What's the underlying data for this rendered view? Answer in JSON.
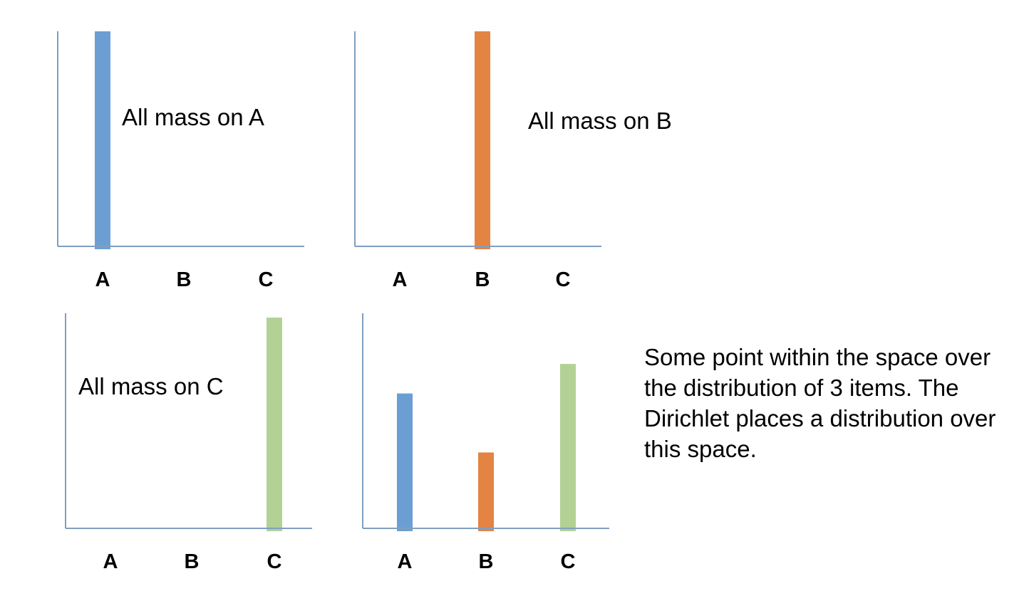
{
  "chart_data": [
    {
      "type": "bar",
      "categories": [
        "A",
        "B",
        "C"
      ],
      "values": [
        1,
        0,
        0
      ],
      "colors": [
        "#6b9fd4",
        "#e38443",
        "#b2d295"
      ],
      "ylim": [
        0,
        1
      ],
      "annotation": "All mass on A"
    },
    {
      "type": "bar",
      "categories": [
        "A",
        "B",
        "C"
      ],
      "values": [
        0,
        1,
        0
      ],
      "colors": [
        "#6b9fd4",
        "#e38443",
        "#b2d295"
      ],
      "ylim": [
        0,
        1
      ],
      "annotation": "All mass on B"
    },
    {
      "type": "bar",
      "categories": [
        "A",
        "B",
        "C"
      ],
      "values": [
        0,
        0,
        1
      ],
      "colors": [
        "#6b9fd4",
        "#e38443",
        "#b2d295"
      ],
      "ylim": [
        0,
        1
      ],
      "annotation": "All mass on C"
    },
    {
      "type": "bar",
      "categories": [
        "A",
        "B",
        "C"
      ],
      "values": [
        0.64,
        0.36,
        0.78
      ],
      "colors": [
        "#6b9fd4",
        "#e38443",
        "#b2d295"
      ],
      "ylim": [
        0,
        1
      ],
      "annotation": ""
    }
  ],
  "caption": "Some point within the space over the distribution of 3 items. The Dirichlet places a distribution over this space.",
  "axis_color": "#7f9fbf"
}
